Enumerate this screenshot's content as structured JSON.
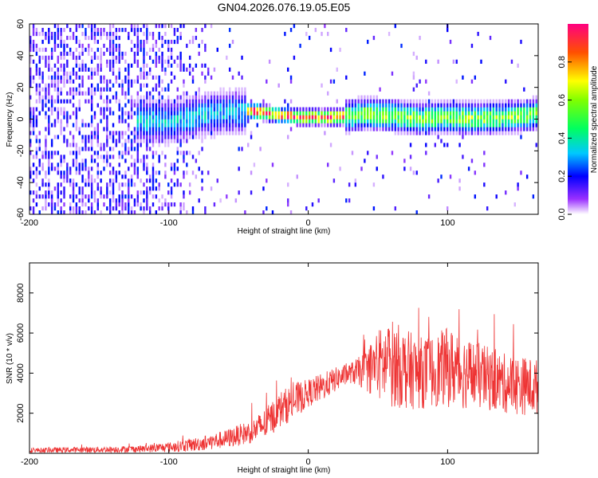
{
  "title": "GN04.2026.076.19.05.E05",
  "chart_data": [
    {
      "type": "heatmap",
      "xlabel": "Height of straight line (km)",
      "ylabel": "Frequency (Hz)",
      "xlim": [
        -200,
        165
      ],
      "ylim": [
        -60,
        60
      ],
      "xticks": [
        -200,
        -100,
        0,
        100
      ],
      "yticks": [
        60,
        40,
        20,
        0,
        -20,
        -40,
        -60
      ],
      "colorbar": {
        "label": "Normalized spectral amplitude",
        "range": [
          0,
          1
        ],
        "ticks": [
          "0.0",
          "0.2",
          "0.4",
          "0.6",
          "0.8"
        ],
        "tick_values": [
          0,
          0.2,
          0.4,
          0.6,
          0.8
        ]
      },
      "ridge": {
        "description_points_x": [
          -120,
          -100,
          -80,
          -60,
          -40,
          -20,
          0,
          20,
          40,
          60,
          80,
          100,
          120,
          140,
          165
        ],
        "center_freq": [
          -2,
          -3,
          1,
          3,
          4,
          1,
          0,
          0,
          2,
          1,
          -1,
          0,
          -1,
          0,
          2
        ]
      },
      "colors": {
        "0.0": "#e6ccff",
        "0.1": "#7a00ff",
        "0.2": "#0000ff",
        "0.3": "#00ffff",
        "0.45": "#00ff40",
        "0.6": "#c0ff00",
        "0.7": "#ffff00",
        "0.85": "#ff6000",
        "1.0": "#ff0090"
      }
    },
    {
      "type": "line",
      "xlabel": "Height of straight line (km)",
      "ylabel": "SNR (10 * v/v)",
      "xlim": [
        -200,
        165
      ],
      "ylim": [
        0,
        9500
      ],
      "xticks": [
        -200,
        -100,
        0,
        100
      ],
      "yticks": [
        2000,
        4000,
        6000,
        8000
      ],
      "series": [
        {
          "name": "SNR",
          "color": "#ee3333",
          "envelope_x": [
            -200,
            -150,
            -120,
            -100,
            -80,
            -60,
            -40,
            -30,
            -20,
            -10,
            0,
            10,
            20,
            30,
            40,
            50,
            60,
            70,
            80,
            90,
            100,
            110,
            120,
            130,
            140,
            150,
            165
          ],
          "envelope_mean": [
            150,
            180,
            220,
            300,
            450,
            700,
            1100,
            1500,
            2200,
            2600,
            3000,
            3300,
            3700,
            4000,
            4100,
            4400,
            4500,
            4200,
            4000,
            4100,
            4300,
            4100,
            3900,
            3700,
            3500,
            3400,
            3300
          ],
          "envelope_spread": [
            120,
            150,
            180,
            250,
            350,
            450,
            600,
            800,
            900,
            900,
            700,
            700,
            600,
            500,
            900,
            1800,
            2200,
            2000,
            1800,
            1800,
            2000,
            1900,
            1700,
            1600,
            1500,
            1500,
            1400
          ]
        }
      ]
    }
  ]
}
